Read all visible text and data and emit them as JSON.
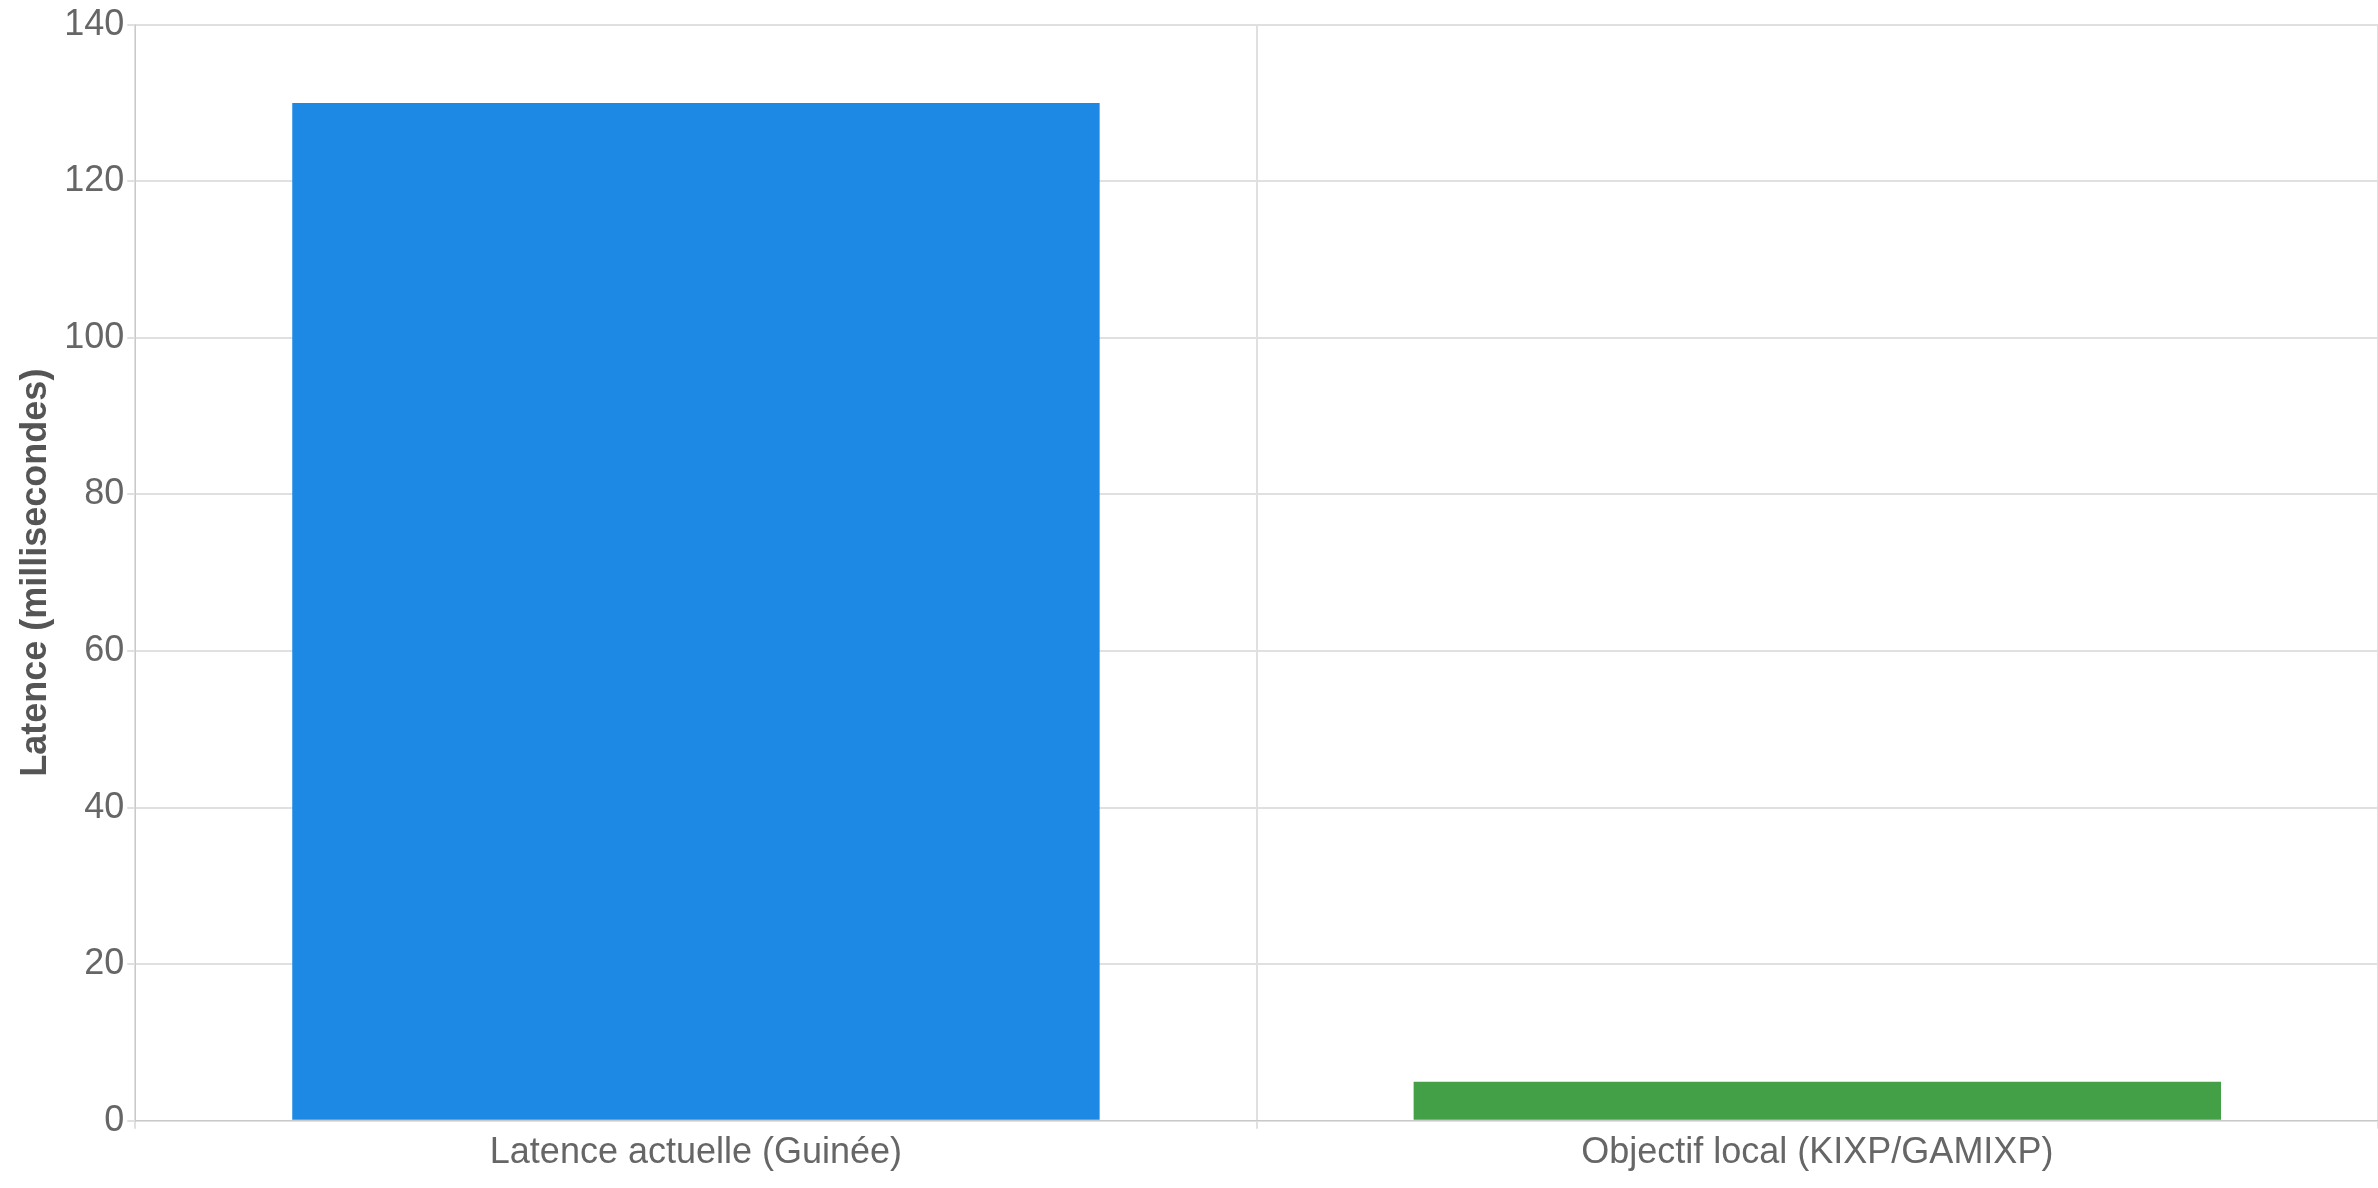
{
  "chart_data": {
    "type": "bar",
    "categories": [
      "Latence actuelle (Guinée)",
      "Objectif local (KIXP/GAMIXP)"
    ],
    "values": [
      130,
      5
    ],
    "colors": [
      "#1e88e5",
      "#43a047"
    ],
    "ylabel": "Latence (millisecondes)",
    "ylim": [
      0,
      140
    ],
    "yticks": [
      0,
      20,
      40,
      60,
      80,
      100,
      120,
      140
    ],
    "grid": true,
    "legend": false
  }
}
